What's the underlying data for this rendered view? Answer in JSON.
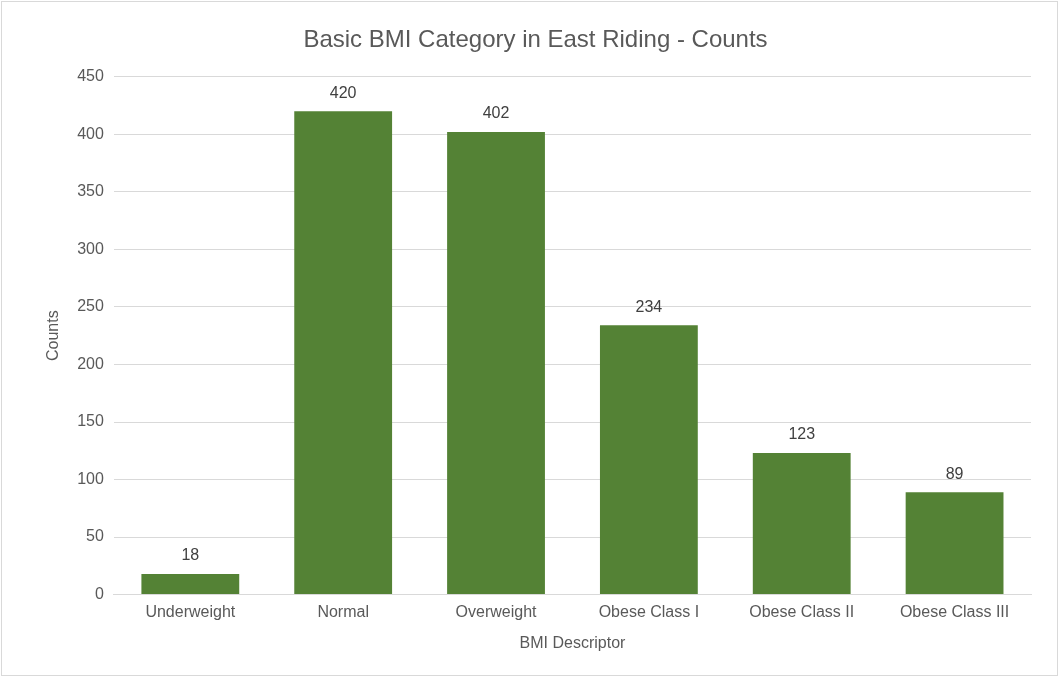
{
  "chart_data": {
    "type": "bar",
    "title": "Basic BMI Category in East Riding - Counts",
    "xlabel": "BMI Descriptor",
    "ylabel": "Counts",
    "categories": [
      "Underweight",
      "Normal",
      "Overweight",
      "Obese Class I",
      "Obese Class II",
      "Obese Class III"
    ],
    "values": [
      18,
      420,
      402,
      234,
      123,
      89
    ],
    "color": "#548235",
    "ylim": [
      0,
      450
    ],
    "yticks": [
      0,
      50,
      100,
      150,
      200,
      250,
      300,
      350,
      400,
      450
    ],
    "grid": "y",
    "data_labels": true,
    "legend": false
  }
}
